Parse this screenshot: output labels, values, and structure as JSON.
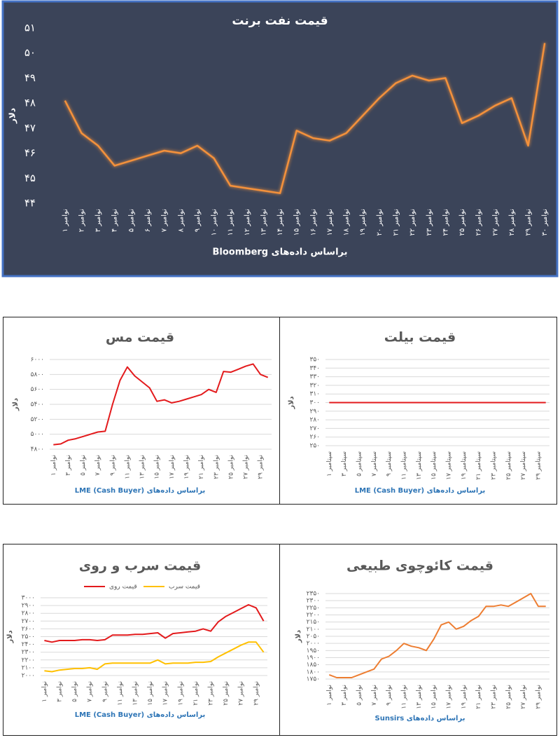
{
  "chart_data": [
    {
      "type": "line",
      "title": "قیمت نفت برنت",
      "y_label": "دلار",
      "x_label": "براساس داده‌های Bloomberg",
      "grid": false,
      "categories": [
        "۱ نوامبر",
        "۲ نوامبر",
        "۳ نوامبر",
        "۴ نوامبر",
        "۵ نوامبر",
        "۶ نوامبر",
        "۷ نوامبر",
        "۸ نوامبر",
        "۹ نوامبر",
        "۱۰ نوامبر",
        "۱۱ نوامبر",
        "۱۲ نوامبر",
        "۱۳ نوامبر",
        "۱۴ نوامبر",
        "۱۵ نوامبر",
        "۱۶ نوامبر",
        "۱۷ نوامبر",
        "۱۸ نوامبر",
        "۱۹ نوامبر",
        "۲۰ نوامبر",
        "۲۱ نوامبر",
        "۲۲ نوامبر",
        "۲۳ نوامبر",
        "۲۴ نوامبر",
        "۲۵ نوامبر",
        "۲۶ نوامبر",
        "۲۷ نوامبر",
        "۲۸ نوامبر",
        "۲۹ نوامبر",
        "۳۰ نوامبر"
      ],
      "series": [
        {
          "color": "#f4913b",
          "values": [
            48.1,
            46.8,
            46.3,
            45.5,
            45.7,
            45.9,
            46.1,
            46.0,
            46.3,
            45.8,
            44.7,
            44.6,
            44.5,
            44.4,
            46.9,
            46.6,
            46.5,
            46.8,
            47.5,
            48.2,
            48.8,
            49.1,
            48.9,
            49.0,
            47.2,
            47.5,
            47.9,
            48.2,
            46.3,
            50.4
          ]
        }
      ],
      "ylim": [
        44,
        51
      ],
      "yticks": [
        {
          "value": 44,
          "label": "۴۴"
        },
        {
          "value": 45,
          "label": "۴۵"
        },
        {
          "value": 46,
          "label": "۴۶"
        },
        {
          "value": 47,
          "label": "۴۷"
        },
        {
          "value": 48,
          "label": "۴۸"
        },
        {
          "value": 49,
          "label": "۴۹"
        },
        {
          "value": 50,
          "label": "۵۰"
        },
        {
          "value": 51,
          "label": "۵۱"
        }
      ]
    },
    {
      "type": "line",
      "title": "قیمت مس",
      "y_label": "دلار",
      "x_label": "براساس داده‌های LME (Cash Buyer)",
      "grid": true,
      "categories": [
        "۱ نوامبر",
        null,
        "۳ نوامبر",
        null,
        "۵ نوامبر",
        null,
        "۷ نوامبر",
        null,
        "۹ نوامبر",
        null,
        "۱۱ نوامبر",
        null,
        "۱۳ نوامبر",
        null,
        "۱۵ نوامبر",
        null,
        "۱۷ نوامبر",
        null,
        "۱۹ نوامبر",
        null,
        "۲۱ نوامبر",
        null,
        "۲۳ نوامبر",
        null,
        "۲۵ نوامبر",
        null,
        "۲۷ نوامبر",
        null,
        "۲۹ نوامبر",
        null
      ],
      "series": [
        {
          "color": "#e31a1c",
          "values": [
            4860,
            4870,
            4920,
            4940,
            4970,
            5000,
            5030,
            5040,
            5400,
            5720,
            5900,
            5780,
            5700,
            5620,
            5440,
            5460,
            5420,
            5440,
            5470,
            5500,
            5530,
            5600,
            5560,
            5840,
            5830,
            5870,
            5910,
            5940,
            5800,
            5760
          ]
        }
      ],
      "ylim": [
        4800,
        6000
      ],
      "yticks": [
        {
          "value": 4800,
          "label": "۴۸۰۰"
        },
        {
          "value": 5000,
          "label": "۵۰۰۰"
        },
        {
          "value": 5200,
          "label": "۵۲۰۰"
        },
        {
          "value": 5400,
          "label": "۵۴۰۰"
        },
        {
          "value": 5600,
          "label": "۵۶۰۰"
        },
        {
          "value": 5800,
          "label": "۵۸۰۰"
        },
        {
          "value": 6000,
          "label": "۶۰۰۰"
        }
      ]
    },
    {
      "type": "line",
      "title": "قیمت بیلت",
      "y_label": "دلار",
      "x_label": "براساس داده‌های LME (Cash Buyer)",
      "grid": true,
      "categories": [
        "۱ سپتامبر",
        null,
        "۳ سپتامبر",
        null,
        "۵ سپتامبر",
        null,
        "۷ سپتامبر",
        null,
        "۹ سپتامبر",
        null,
        "۱۱ سپتامبر",
        null,
        "۱۳ سپتامبر",
        null,
        "۱۵ سپتامبر",
        null,
        "۱۷ سپتامبر",
        null,
        "۱۹ سپتامبر",
        null,
        "۲۱ سپتامبر",
        null,
        "۲۳ سپتامبر",
        null,
        "۲۵ سپتامبر",
        null,
        "۲۷ سپتامبر",
        null,
        "۲۹ سپتامبر",
        null
      ],
      "series": [
        {
          "color": "#e31a1c",
          "values": [
            300,
            300,
            300,
            300,
            300,
            300,
            300,
            300,
            300,
            300,
            300,
            300,
            300,
            300,
            300,
            300,
            300,
            300,
            300,
            300,
            300,
            300,
            300,
            300,
            300,
            300,
            300,
            300,
            300,
            300
          ]
        }
      ],
      "ylim": [
        250,
        350
      ],
      "yticks": [
        {
          "value": 250,
          "label": "۲۵۰"
        },
        {
          "value": 260,
          "label": "۲۶۰"
        },
        {
          "value": 270,
          "label": "۲۷۰"
        },
        {
          "value": 280,
          "label": "۲۸۰"
        },
        {
          "value": 290,
          "label": "۲۹۰"
        },
        {
          "value": 300,
          "label": "۳۰۰"
        },
        {
          "value": 310,
          "label": "۳۱۰"
        },
        {
          "value": 320,
          "label": "۳۲۰"
        },
        {
          "value": 330,
          "label": "۳۳۰"
        },
        {
          "value": 340,
          "label": "۳۴۰"
        },
        {
          "value": 350,
          "label": "۳۵۰"
        }
      ]
    },
    {
      "type": "line",
      "title": "قیمت سرب و روی",
      "y_label": "دلار",
      "x_label": "براساس داده‌های LME (Cash Buyer)",
      "grid": true,
      "categories": [
        "۱ نوامبر",
        null,
        "۳ نوامبر",
        null,
        "۵ نوامبر",
        null,
        "۷ نوامبر",
        null,
        "۹ نوامبر",
        null,
        "۱۱ نوامبر",
        null,
        "۱۳ نوامبر",
        null,
        "۱۵ نوامبر",
        null,
        "۱۷ نوامبر",
        null,
        "۱۹ نوامبر",
        null,
        "۲۱ نوامبر",
        null,
        "۲۳ نوامبر",
        null,
        "۲۵ نوامبر",
        null,
        "۲۷ نوامبر",
        null,
        "۲۹ نوامبر",
        null
      ],
      "series": [
        {
          "name": "قیمت روی",
          "color": "#e31a1c",
          "values": [
            2450,
            2430,
            2450,
            2450,
            2450,
            2460,
            2460,
            2450,
            2460,
            2520,
            2520,
            2520,
            2530,
            2530,
            2540,
            2550,
            2480,
            2540,
            2550,
            2560,
            2570,
            2600,
            2570,
            2690,
            2760,
            2810,
            2860,
            2910,
            2870,
            2700
          ]
        },
        {
          "name": "قیمت سرب",
          "color": "#ffc000",
          "values": [
            2060,
            2050,
            2070,
            2080,
            2090,
            2090,
            2100,
            2080,
            2150,
            2160,
            2160,
            2160,
            2160,
            2160,
            2160,
            2200,
            2150,
            2160,
            2160,
            2160,
            2170,
            2170,
            2180,
            2240,
            2290,
            2340,
            2390,
            2430,
            2430,
            2300
          ]
        }
      ],
      "ylim": [
        2000,
        3000
      ],
      "yticks": [
        {
          "value": 2000,
          "label": "۲۰۰۰"
        },
        {
          "value": 2100,
          "label": "۲۱۰۰"
        },
        {
          "value": 2200,
          "label": "۲۲۰۰"
        },
        {
          "value": 2300,
          "label": "۲۳۰۰"
        },
        {
          "value": 2400,
          "label": "۲۴۰۰"
        },
        {
          "value": 2500,
          "label": "۲۵۰۰"
        },
        {
          "value": 2600,
          "label": "۲۶۰۰"
        },
        {
          "value": 2700,
          "label": "۲۷۰۰"
        },
        {
          "value": 2800,
          "label": "۲۸۰۰"
        },
        {
          "value": 2900,
          "label": "۲۹۰۰"
        },
        {
          "value": 3000,
          "label": "۳۰۰۰"
        }
      ]
    },
    {
      "type": "line",
      "title": "قیمت کائوچوی طبیعی",
      "y_label": "دلار",
      "x_label": "براساس داده‌های Sunsirs",
      "grid": true,
      "categories": [
        "۱ نوامبر",
        null,
        "۳ نوامبر",
        null,
        "۵ نوامبر",
        null,
        "۷ نوامبر",
        null,
        "۹ نوامبر",
        null,
        "۱۱ نوامبر",
        null,
        "۱۳ نوامبر",
        null,
        "۱۵ نوامبر",
        null,
        "۱۷ نوامبر",
        null,
        "۱۹ نوامبر",
        null,
        "۲۱ نوامبر",
        null,
        "۲۳ نوامبر",
        null,
        "۲۵ نوامبر",
        null,
        "۲۷ نوامبر",
        null,
        "۲۹ نوامبر",
        null
      ],
      "series": [
        {
          "color": "#ed7d31",
          "values": [
            1780,
            1760,
            1760,
            1760,
            1780,
            1800,
            1820,
            1890,
            1910,
            1950,
            2000,
            1980,
            1970,
            1950,
            2030,
            2130,
            2150,
            2100,
            2120,
            2160,
            2190,
            2260,
            2260,
            2270,
            2260,
            2290,
            2320,
            2350,
            2260,
            2260
          ]
        }
      ],
      "ylim": [
        1750,
        2350
      ],
      "yticks": [
        {
          "value": 1750,
          "label": "۱۷۵۰"
        },
        {
          "value": 1800,
          "label": "۱۸۰۰"
        },
        {
          "value": 1850,
          "label": "۱۸۵۰"
        },
        {
          "value": 1900,
          "label": "۱۹۰۰"
        },
        {
          "value": 1950,
          "label": "۱۹۵۰"
        },
        {
          "value": 2000,
          "label": "۲۰۰۰"
        },
        {
          "value": 2050,
          "label": "۲۰۵۰"
        },
        {
          "value": 2100,
          "label": "۲۱۰۰"
        },
        {
          "value": 2150,
          "label": "۲۱۵۰"
        },
        {
          "value": 2200,
          "label": "۲۲۰۰"
        },
        {
          "value": 2250,
          "label": "۲۲۵۰"
        },
        {
          "value": 2300,
          "label": "۲۳۰۰"
        },
        {
          "value": 2350,
          "label": "۲۳۵۰"
        }
      ]
    }
  ]
}
